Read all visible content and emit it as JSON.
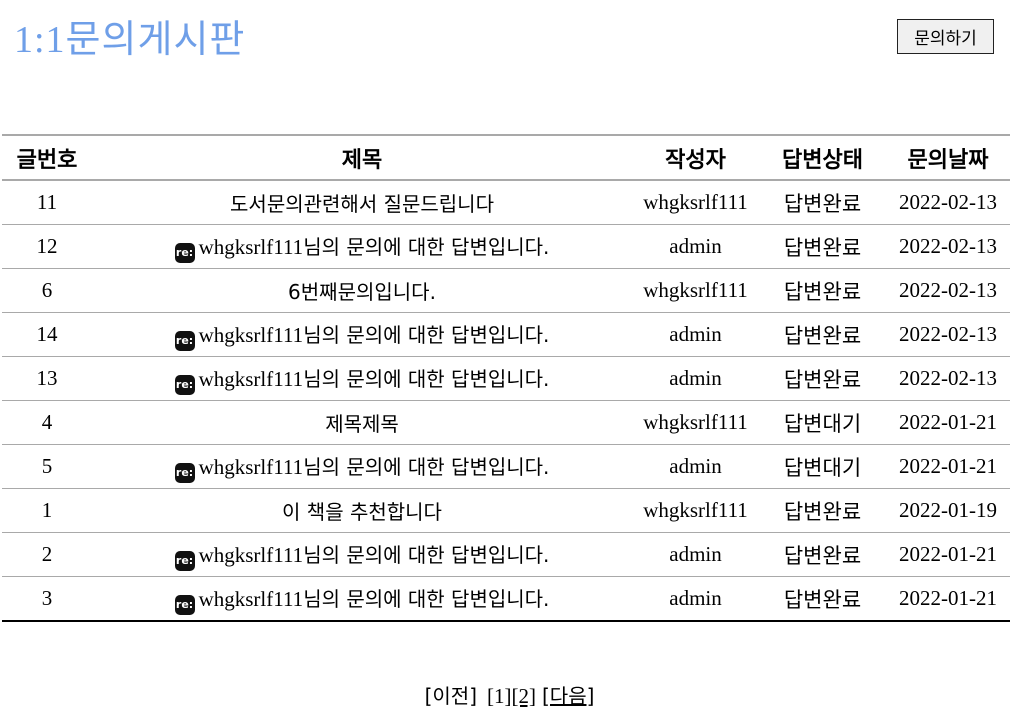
{
  "page": {
    "title": "1:1문의게시판",
    "ask_button": "문의하기"
  },
  "table": {
    "headers": [
      "글번호",
      "제목",
      "작성자",
      "답변상태",
      "문의날짜"
    ],
    "rows": [
      {
        "no": "11",
        "reply": false,
        "title_user": "",
        "title_text": "도서문의관련해서 질문드립니다",
        "writer": "whgksrlf111",
        "status": "답변완료",
        "date": "2022-02-13"
      },
      {
        "no": "12",
        "reply": true,
        "title_user": "whgksrlf111",
        "title_text": "님의 문의에 대한 답변입니다.",
        "writer": "admin",
        "status": "답변완료",
        "date": "2022-02-13"
      },
      {
        "no": "6",
        "reply": false,
        "title_user": "",
        "title_text": "6번째문의입니다.",
        "writer": "whgksrlf111",
        "status": "답변완료",
        "date": "2022-02-13"
      },
      {
        "no": "14",
        "reply": true,
        "title_user": "whgksrlf111",
        "title_text": "님의 문의에 대한 답변입니다.",
        "writer": "admin",
        "status": "답변완료",
        "date": "2022-02-13"
      },
      {
        "no": "13",
        "reply": true,
        "title_user": "whgksrlf111",
        "title_text": "님의 문의에 대한 답변입니다.",
        "writer": "admin",
        "status": "답변완료",
        "date": "2022-02-13"
      },
      {
        "no": "4",
        "reply": false,
        "title_user": "",
        "title_text": "제목제목",
        "writer": "whgksrlf111",
        "status": "답변대기",
        "date": "2022-01-21"
      },
      {
        "no": "5",
        "reply": true,
        "title_user": "whgksrlf111",
        "title_text": "님의 문의에 대한 답변입니다.",
        "writer": "admin",
        "status": "답변대기",
        "date": "2022-01-21"
      },
      {
        "no": "1",
        "reply": false,
        "title_user": "",
        "title_text": "이 책을 추천합니다",
        "writer": "whgksrlf111",
        "status": "답변완료",
        "date": "2022-01-19"
      },
      {
        "no": "2",
        "reply": true,
        "title_user": "whgksrlf111",
        "title_text": "님의 문의에 대한 답변입니다.",
        "writer": "admin",
        "status": "답변완료",
        "date": "2022-01-21"
      },
      {
        "no": "3",
        "reply": true,
        "title_user": "whgksrlf111",
        "title_text": "님의 문의에 대한 답변입니다.",
        "writer": "admin",
        "status": "답변완료",
        "date": "2022-01-21"
      }
    ]
  },
  "reply_icon": {
    "name": "reply-badge-icon",
    "text": "re:"
  },
  "pagination": {
    "prev": "[이전]",
    "page1": "[1]",
    "page2": "[2]",
    "next": "[다음]"
  }
}
